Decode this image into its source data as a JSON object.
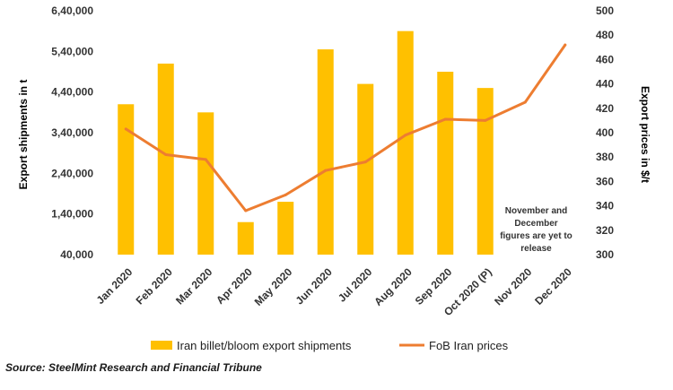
{
  "chart_data": {
    "type": "bar+line",
    "categories": [
      "Jan 2020",
      "Feb 2020",
      "Mar 2020",
      "Apr 2020",
      "May 2020",
      "Jun 2020",
      "Jul 2020",
      "Aug 2020",
      "Sep 2020",
      "Oct 2020 (P)",
      "Nov 2020",
      "Dec 2020"
    ],
    "series": [
      {
        "name": "Iran billet/bloom export shipments",
        "type": "bar",
        "axis": "left",
        "values": [
          410000,
          510000,
          390000,
          120000,
          170000,
          545000,
          460000,
          590000,
          490000,
          450000,
          null,
          null
        ]
      },
      {
        "name": "FoB Iran prices",
        "type": "line",
        "axis": "right",
        "values": [
          403,
          382,
          378,
          336,
          349,
          369,
          376,
          398,
          411,
          410,
          425,
          472
        ]
      }
    ],
    "y_left": {
      "label": "Export shipments in t",
      "min": 40000,
      "max": 640000,
      "ticks": [
        40000,
        140000,
        240000,
        340000,
        440000,
        540000,
        640000
      ],
      "tick_labels": [
        "40,000",
        "1,40,000",
        "2,40,000",
        "3,40,000",
        "4,40,000",
        "5,40,000",
        "6,40,000"
      ]
    },
    "y_right": {
      "label": "Export prices in $/t",
      "min": 300,
      "max": 500,
      "ticks": [
        300,
        320,
        340,
        360,
        380,
        400,
        420,
        440,
        460,
        480,
        500
      ]
    },
    "annotation": [
      "November and",
      "December",
      "figures are yet to",
      "release"
    ],
    "source": "Source: SteelMint Research and Financial Tribune",
    "colors": {
      "bars": "#FFC000",
      "line": "#ED7D31"
    },
    "grid": false,
    "legend_position": "bottom"
  }
}
